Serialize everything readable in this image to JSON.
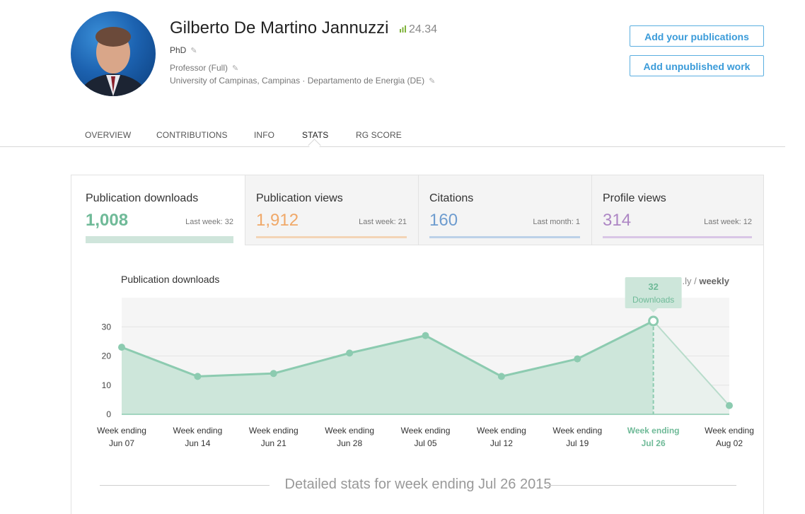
{
  "profile": {
    "name": "Gilberto De Martino Jannuzzi",
    "rg_score": "24.34",
    "degree": "PhD",
    "position": "Professor (Full)",
    "institution": "University of Campinas, Campinas · Departamento de Energia (DE)"
  },
  "buttons": {
    "add_publications": "Add your publications",
    "add_unpublished": "Add unpublished work"
  },
  "tabs": [
    {
      "label": "OVERVIEW",
      "active": false
    },
    {
      "label": "CONTRIBUTIONS",
      "active": false
    },
    {
      "label": "INFO",
      "active": false
    },
    {
      "label": "STATS",
      "active": true
    },
    {
      "label": "RG SCORE",
      "active": false
    }
  ],
  "stat_tabs": [
    {
      "label": "Publication downloads",
      "value": "1,008",
      "last": "Last week: 32",
      "color": "#6fba98",
      "underline": "#cfe5db",
      "active": true
    },
    {
      "label": "Publication views",
      "value": "1,912",
      "last": "Last week: 21",
      "color": "#f0a868",
      "underline": "#f3d4b6",
      "active": false
    },
    {
      "label": "Citations",
      "value": "160",
      "last": "Last month: 1",
      "color": "#6e9ccf",
      "underline": "#bcd1e8",
      "active": false
    },
    {
      "label": "Profile views",
      "value": "314",
      "last": "Last week: 12",
      "color": "#ad86c4",
      "underline": "#d9c6e6",
      "active": false
    }
  ],
  "chart": {
    "title": "Publication downloads",
    "period_prefix": "...ly /",
    "period_selected": "weekly",
    "detail_title": "Detailed stats for week ending Jul 26 2015",
    "accent": "#8ccbb0",
    "tooltip": {
      "value": "32",
      "label": "Downloads"
    }
  },
  "chart_data": {
    "type": "area",
    "x": [
      [
        "Week ending",
        "Jun 07"
      ],
      [
        "Week ending",
        "Jun 14"
      ],
      [
        "Week ending",
        "Jun 21"
      ],
      [
        "Week ending",
        "Jun 28"
      ],
      [
        "Week ending",
        "Jul 05"
      ],
      [
        "Week ending",
        "Jul 12"
      ],
      [
        "Week ending",
        "Jul 19"
      ],
      [
        "Week ending",
        "Jul 26"
      ],
      [
        "Week ending",
        "Aug 02"
      ]
    ],
    "values": [
      23,
      13,
      14,
      21,
      27,
      13,
      19,
      32,
      3
    ],
    "highlight_index": 7,
    "ylim": [
      0,
      40
    ],
    "yticks": [
      0,
      10,
      20,
      30
    ],
    "grid": true
  }
}
